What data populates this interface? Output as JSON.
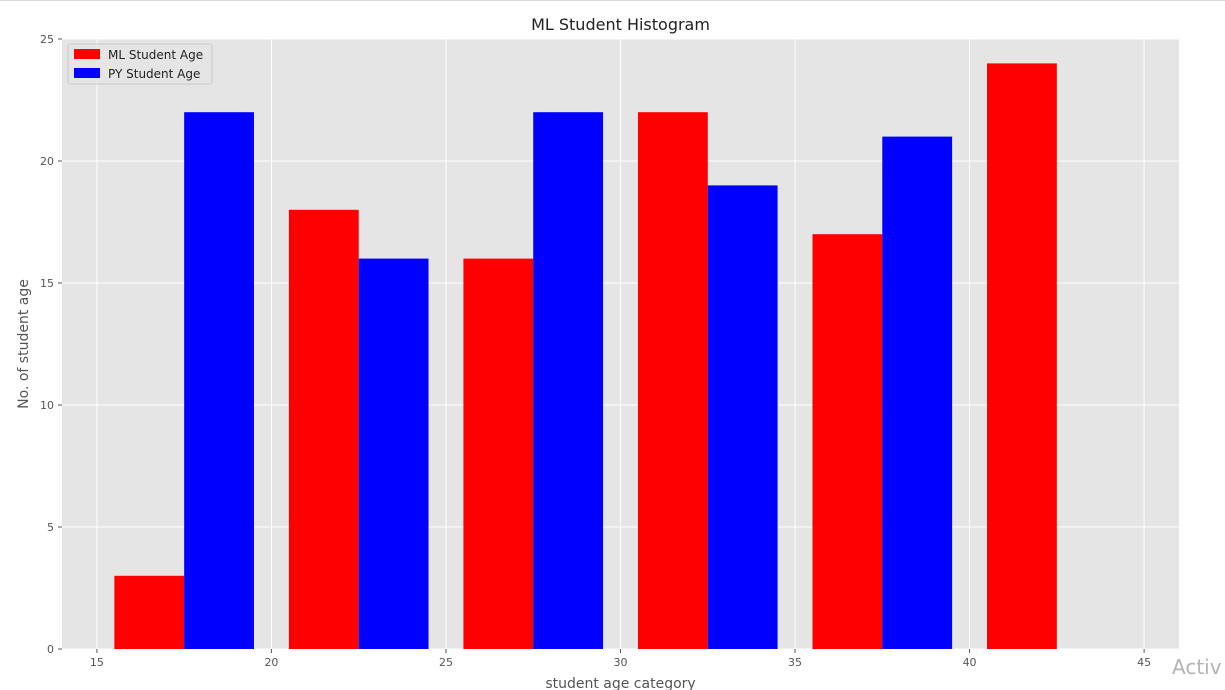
{
  "chart_data": {
    "type": "bar",
    "title": "ML Student Histogram",
    "xlabel": "student age category",
    "ylabel": "No. of student age",
    "xlim": [
      14,
      46
    ],
    "ylim": [
      0,
      25
    ],
    "xticks": [
      15,
      20,
      25,
      30,
      35,
      40,
      45
    ],
    "yticks": [
      0,
      5,
      10,
      15,
      20,
      25
    ],
    "grid": true,
    "legend_position": "top-left",
    "bin_starts": [
      15.5,
      20.5,
      25.5,
      30.5,
      35.5,
      40.5
    ],
    "bin_width": 4,
    "series": [
      {
        "name": "ML Student Age",
        "color": "#ff0000",
        "values": [
          3,
          18,
          16,
          22,
          17,
          24
        ]
      },
      {
        "name": "PY Student Age",
        "color": "#0000ff",
        "values": [
          22,
          16,
          22,
          19,
          21,
          0
        ]
      }
    ],
    "colors": {
      "plot_background": "#e5e5e5",
      "grid": "#ffffff"
    }
  },
  "overlay": {
    "watermark_text": "Activ"
  }
}
